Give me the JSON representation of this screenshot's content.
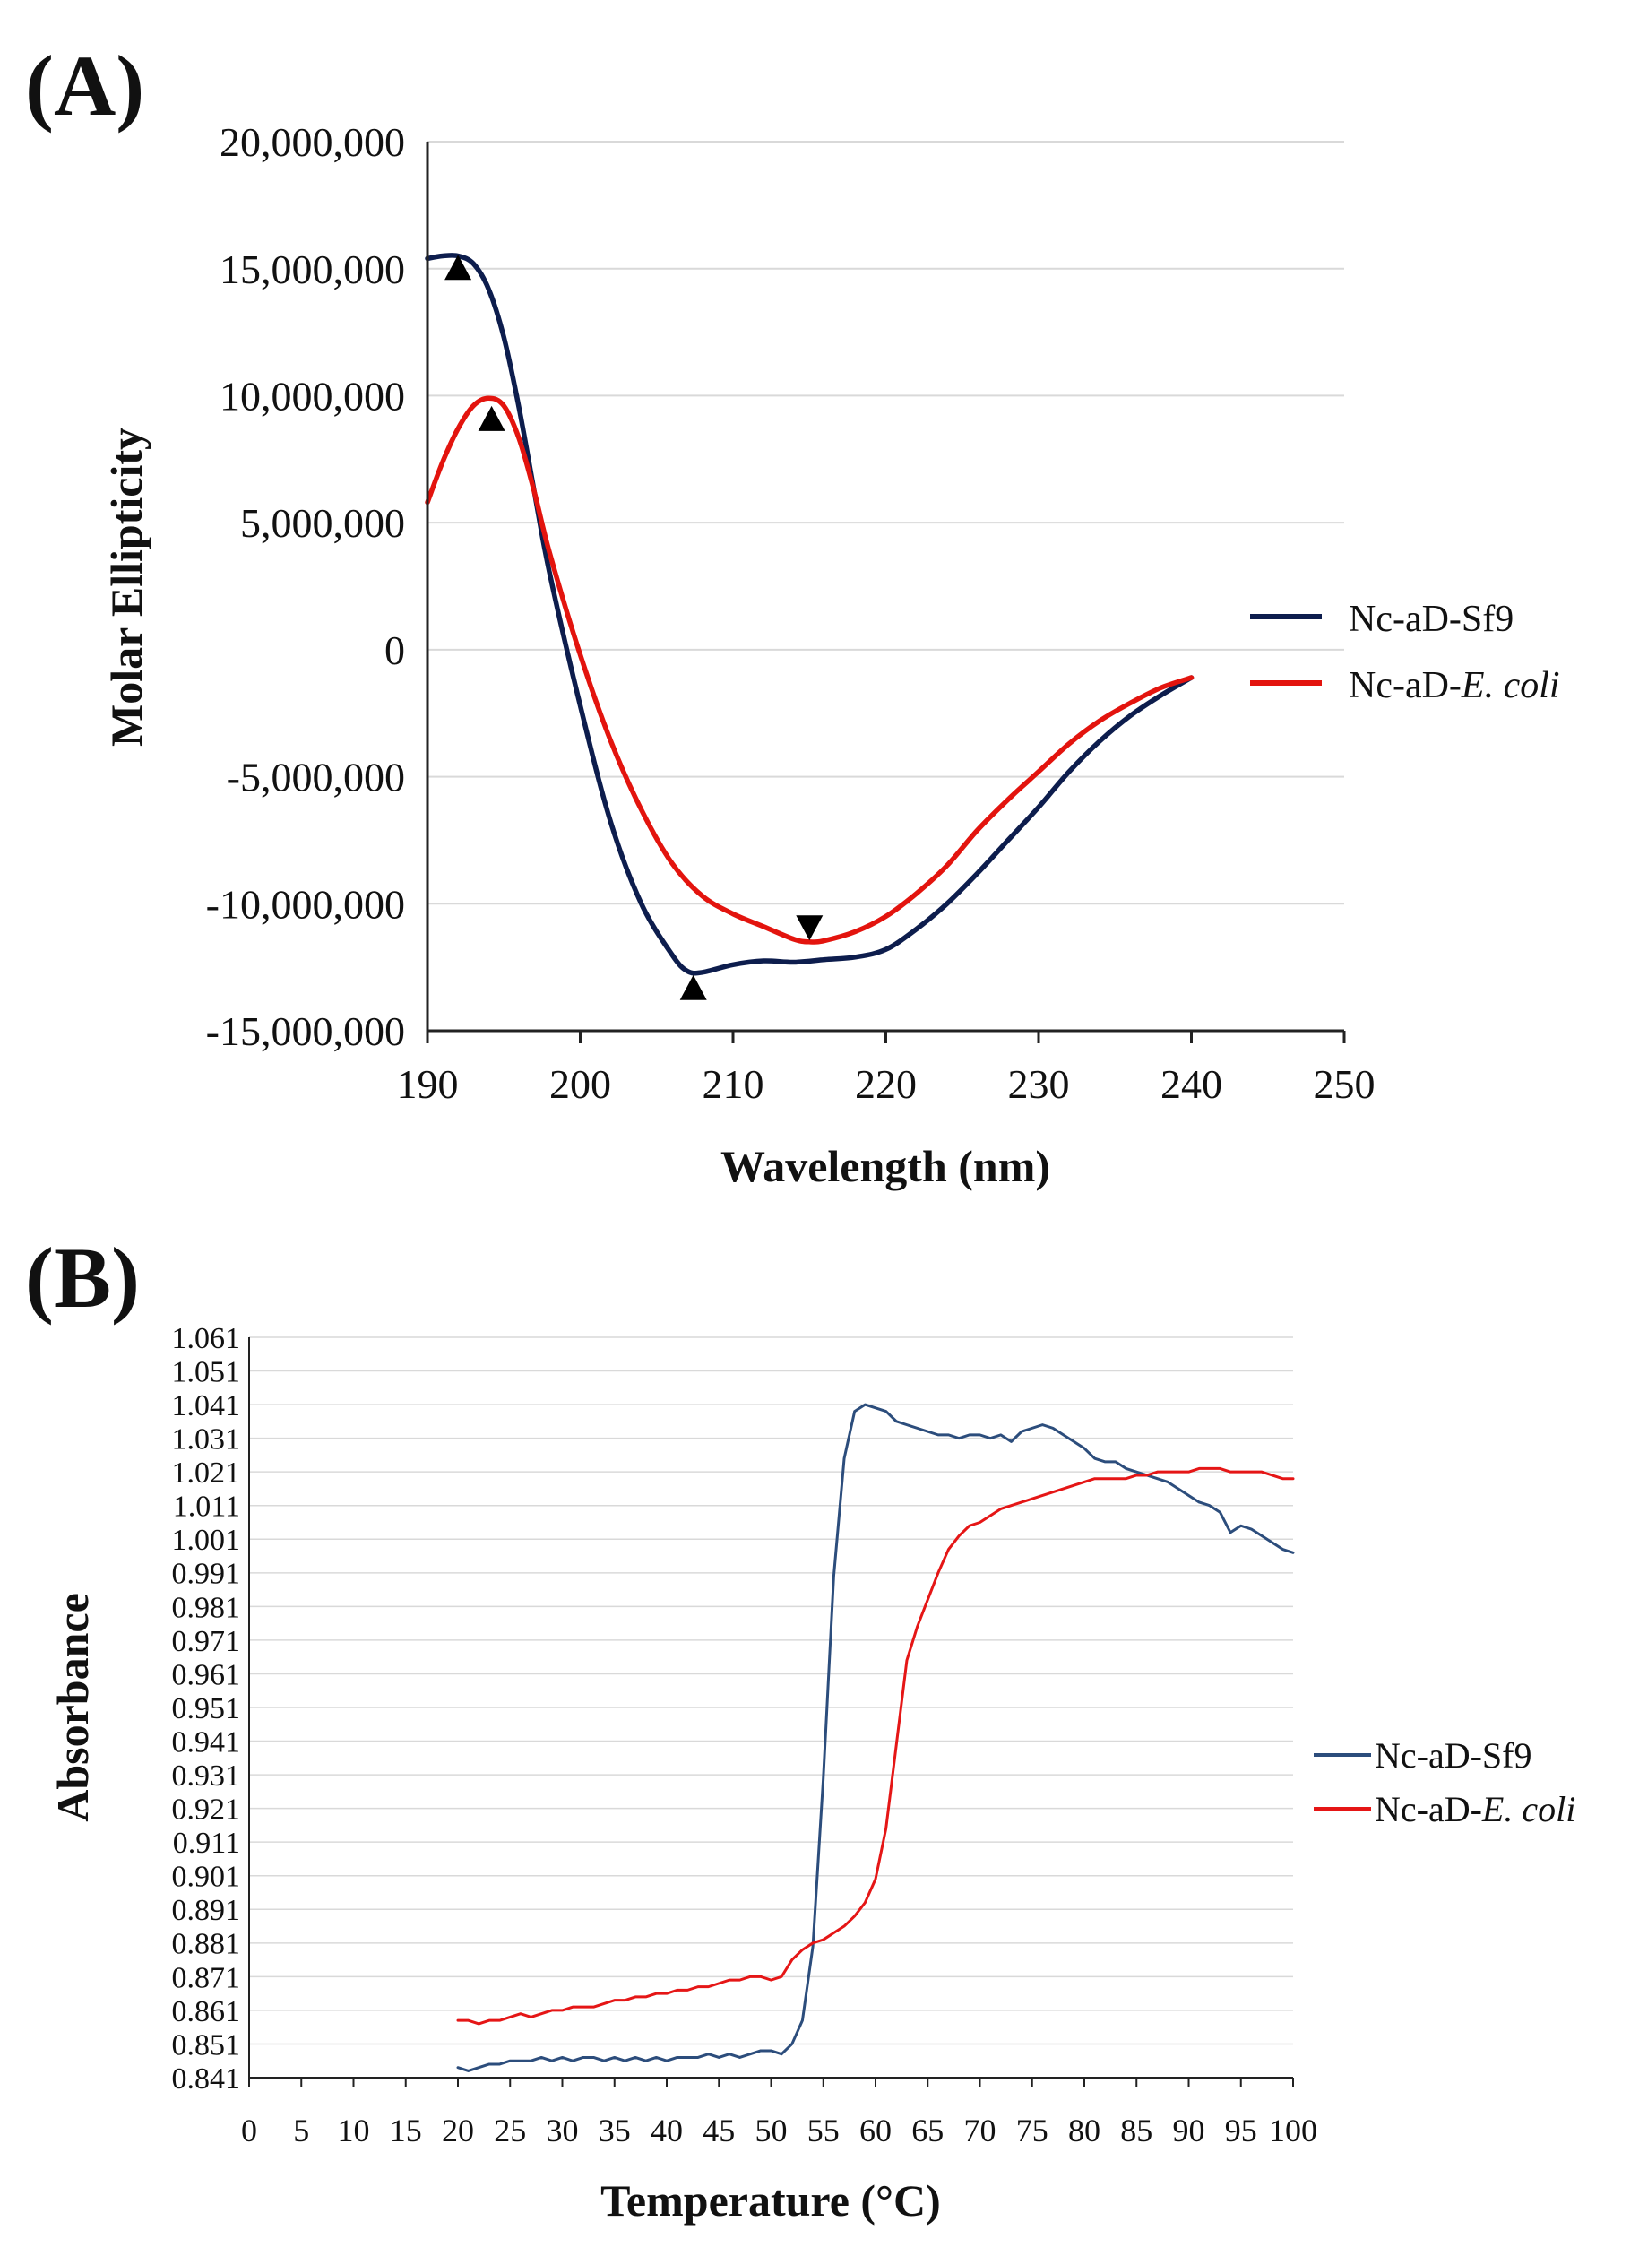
{
  "colors": {
    "sf9_a": "#0d1d4d",
    "ecoli_a": "#e3140e",
    "sf9_b": "#2c4d7c",
    "ecoli_b": "#e51616",
    "grid": "#d9d9d9",
    "axis": "#222222",
    "marker": "#000000"
  },
  "chart_data": [
    {
      "type": "line",
      "panel_label": "(A)",
      "title": "",
      "xlabel": "Wavelength (nm)",
      "ylabel": "Molar Ellipticity",
      "xlim": [
        190,
        250
      ],
      "ylim": [
        -15000000,
        20000000
      ],
      "x_ticks": [
        190,
        200,
        210,
        220,
        230,
        240,
        250
      ],
      "x_tick_labels": [
        "190",
        "200",
        "210",
        "220",
        "230",
        "240",
        "250"
      ],
      "y_ticks": [
        20000000,
        15000000,
        10000000,
        5000000,
        0,
        -5000000,
        -10000000,
        -15000000
      ],
      "y_tick_labels": [
        "20,000,000",
        "15,000,000",
        "10,000,000",
        "5,000,000",
        "0",
        "-5,000,000",
        "-10,000,000",
        "-15,000,000"
      ],
      "grid": true,
      "legend_position": "right",
      "series": [
        {
          "name": "Nc-aD-Sf9",
          "legend_prefix": "Nc-aD-Sf9",
          "legend_italic": "",
          "color_key": "sf9_a",
          "x": [
            190,
            191,
            192,
            193,
            194,
            195,
            196,
            197,
            198,
            200,
            202,
            204,
            206,
            207,
            208,
            210,
            212,
            214,
            216,
            218,
            220,
            222,
            224,
            226,
            228,
            230,
            232,
            234,
            236,
            238,
            240
          ],
          "y": [
            15400000,
            15500000,
            15500000,
            15200000,
            14200000,
            12300000,
            9500000,
            6200000,
            3000000,
            -2200000,
            -6800000,
            -10000000,
            -12000000,
            -12650000,
            -12700000,
            -12400000,
            -12250000,
            -12300000,
            -12200000,
            -12100000,
            -11800000,
            -11000000,
            -10000000,
            -8800000,
            -7500000,
            -6200000,
            -4800000,
            -3600000,
            -2600000,
            -1800000,
            -1100000
          ]
        },
        {
          "name": "Nc-aD-E. coli",
          "legend_prefix": "Nc-aD-",
          "legend_italic": "E. coli",
          "color_key": "ecoli_a",
          "x": [
            190,
            191,
            192,
            193,
            194,
            195,
            196,
            197,
            198,
            200,
            202,
            204,
            206,
            208,
            210,
            212,
            214,
            215,
            216,
            218,
            220,
            222,
            224,
            226,
            228,
            230,
            232,
            234,
            236,
            238,
            240
          ],
          "y": [
            5800000,
            7400000,
            8700000,
            9600000,
            9900000,
            9600000,
            8300000,
            6200000,
            3800000,
            -200000,
            -3600000,
            -6300000,
            -8400000,
            -9700000,
            -10400000,
            -10900000,
            -11400000,
            -11500000,
            -11450000,
            -11100000,
            -10500000,
            -9600000,
            -8500000,
            -7100000,
            -5900000,
            -4800000,
            -3700000,
            -2800000,
            -2100000,
            -1500000,
            -1100000
          ]
        }
      ],
      "annotations": [
        {
          "type": "marker-up",
          "series": "Nc-aD-Sf9",
          "x": 192,
          "y": 15050000
        },
        {
          "type": "marker-up",
          "series": "Nc-aD-E. coli",
          "x": 194.2,
          "y": 9100000
        },
        {
          "type": "marker-up",
          "series": "Nc-aD-Sf9",
          "x": 207.4,
          "y": -13300000
        },
        {
          "type": "marker-down",
          "series": "Nc-aD-E. coli",
          "x": 215,
          "y": -10950000
        }
      ]
    },
    {
      "type": "line",
      "panel_label": "(B)",
      "title": "",
      "xlabel": "Temperature (°C)",
      "ylabel": "Absorbance",
      "xlim": [
        0,
        100
      ],
      "ylim": [
        0.841,
        1.061
      ],
      "x_ticks": [
        0,
        5,
        10,
        15,
        20,
        25,
        30,
        35,
        40,
        45,
        50,
        55,
        60,
        65,
        70,
        75,
        80,
        85,
        90,
        95,
        100
      ],
      "x_tick_labels": [
        "0",
        "5",
        "10",
        "15",
        "20",
        "25",
        "30",
        "35",
        "40",
        "45",
        "50",
        "55",
        "60",
        "65",
        "70",
        "75",
        "80",
        "85",
        "90",
        "95",
        "100"
      ],
      "y_ticks": [
        1.061,
        1.051,
        1.041,
        1.031,
        1.021,
        1.011,
        1.001,
        0.991,
        0.981,
        0.971,
        0.961,
        0.951,
        0.941,
        0.931,
        0.921,
        0.911,
        0.901,
        0.891,
        0.881,
        0.871,
        0.861,
        0.851,
        0.841
      ],
      "y_tick_labels": [
        "1.061",
        "1.051",
        "1.041",
        "1.031",
        "1.021",
        "1.011",
        "1.001",
        "0.991",
        "0.981",
        "0.971",
        "0.961",
        "0.951",
        "0.941",
        "0.931",
        "0.921",
        "0.911",
        "0.901",
        "0.891",
        "0.881",
        "0.871",
        "0.861",
        "0.851",
        "0.841"
      ],
      "grid": true,
      "legend_position": "right",
      "series": [
        {
          "name": "Nc-aD-Sf9",
          "legend_prefix": "Nc-aD-Sf9",
          "legend_italic": "",
          "color_key": "sf9_b",
          "x": [
            20,
            21,
            22,
            23,
            24,
            25,
            26,
            27,
            28,
            29,
            30,
            31,
            32,
            33,
            34,
            35,
            36,
            37,
            38,
            39,
            40,
            41,
            42,
            43,
            44,
            45,
            46,
            47,
            48,
            49,
            50,
            51,
            52,
            53,
            54,
            55,
            56,
            57,
            58,
            59,
            60,
            61,
            62,
            63,
            64,
            65,
            66,
            67,
            68,
            69,
            70,
            71,
            72,
            73,
            74,
            75,
            76,
            77,
            78,
            79,
            80,
            81,
            82,
            83,
            84,
            85,
            86,
            87,
            88,
            89,
            90,
            91,
            92,
            93,
            94,
            95,
            96,
            97,
            98,
            99,
            100
          ],
          "y": [
            0.844,
            0.843,
            0.844,
            0.845,
            0.845,
            0.846,
            0.846,
            0.846,
            0.847,
            0.846,
            0.847,
            0.846,
            0.847,
            0.847,
            0.846,
            0.847,
            0.846,
            0.847,
            0.846,
            0.847,
            0.846,
            0.847,
            0.847,
            0.847,
            0.848,
            0.847,
            0.848,
            0.847,
            0.848,
            0.849,
            0.849,
            0.848,
            0.851,
            0.858,
            0.88,
            0.93,
            0.99,
            1.025,
            1.039,
            1.041,
            1.04,
            1.039,
            1.036,
            1.035,
            1.034,
            1.033,
            1.032,
            1.032,
            1.031,
            1.032,
            1.032,
            1.031,
            1.032,
            1.03,
            1.033,
            1.034,
            1.035,
            1.034,
            1.032,
            1.03,
            1.028,
            1.025,
            1.024,
            1.024,
            1.022,
            1.021,
            1.02,
            1.019,
            1.018,
            1.016,
            1.014,
            1.012,
            1.011,
            1.009,
            1.003,
            1.005,
            1.004,
            1.002,
            1.0,
            0.998,
            0.997
          ]
        },
        {
          "name": "Nc-aD-E. coli",
          "legend_prefix": "Nc-aD-",
          "legend_italic": "E. coli",
          "color_key": "ecoli_b",
          "x": [
            20,
            21,
            22,
            23,
            24,
            25,
            26,
            27,
            28,
            29,
            30,
            31,
            32,
            33,
            34,
            35,
            36,
            37,
            38,
            39,
            40,
            41,
            42,
            43,
            44,
            45,
            46,
            47,
            48,
            49,
            50,
            51,
            52,
            53,
            54,
            55,
            56,
            57,
            58,
            59,
            60,
            61,
            62,
            63,
            64,
            65,
            66,
            67,
            68,
            69,
            70,
            71,
            72,
            73,
            74,
            75,
            76,
            77,
            78,
            79,
            80,
            81,
            82,
            83,
            84,
            85,
            86,
            87,
            88,
            89,
            90,
            91,
            92,
            93,
            94,
            95,
            96,
            97,
            98,
            99,
            100
          ],
          "y": [
            0.858,
            0.858,
            0.857,
            0.858,
            0.858,
            0.859,
            0.86,
            0.859,
            0.86,
            0.861,
            0.861,
            0.862,
            0.862,
            0.862,
            0.863,
            0.864,
            0.864,
            0.865,
            0.865,
            0.866,
            0.866,
            0.867,
            0.867,
            0.868,
            0.868,
            0.869,
            0.87,
            0.87,
            0.871,
            0.871,
            0.87,
            0.871,
            0.876,
            0.879,
            0.881,
            0.882,
            0.884,
            0.886,
            0.889,
            0.893,
            0.9,
            0.915,
            0.94,
            0.965,
            0.975,
            0.983,
            0.991,
            0.998,
            1.002,
            1.005,
            1.006,
            1.008,
            1.01,
            1.011,
            1.012,
            1.013,
            1.014,
            1.015,
            1.016,
            1.017,
            1.018,
            1.019,
            1.019,
            1.019,
            1.019,
            1.02,
            1.02,
            1.021,
            1.021,
            1.021,
            1.021,
            1.022,
            1.022,
            1.022,
            1.021,
            1.021,
            1.021,
            1.021,
            1.02,
            1.019,
            1.019
          ]
        }
      ],
      "annotations": []
    }
  ]
}
